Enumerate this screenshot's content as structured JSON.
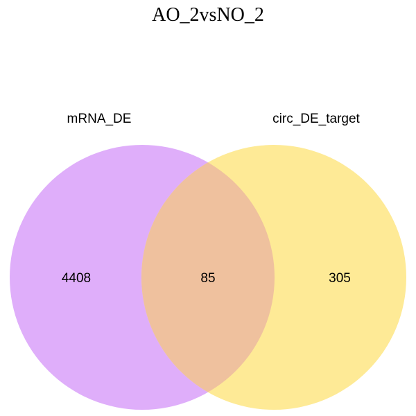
{
  "title": "AO_2vsNO_2",
  "sets": [
    {
      "label": "mRNA_DE",
      "color": "#dfaefa"
    },
    {
      "label": "circ_DE_target",
      "color": "#feea96"
    }
  ],
  "overlap_color": "#efc19e",
  "counts": {
    "left_only": "4408",
    "both": "85",
    "right_only": "305"
  }
}
